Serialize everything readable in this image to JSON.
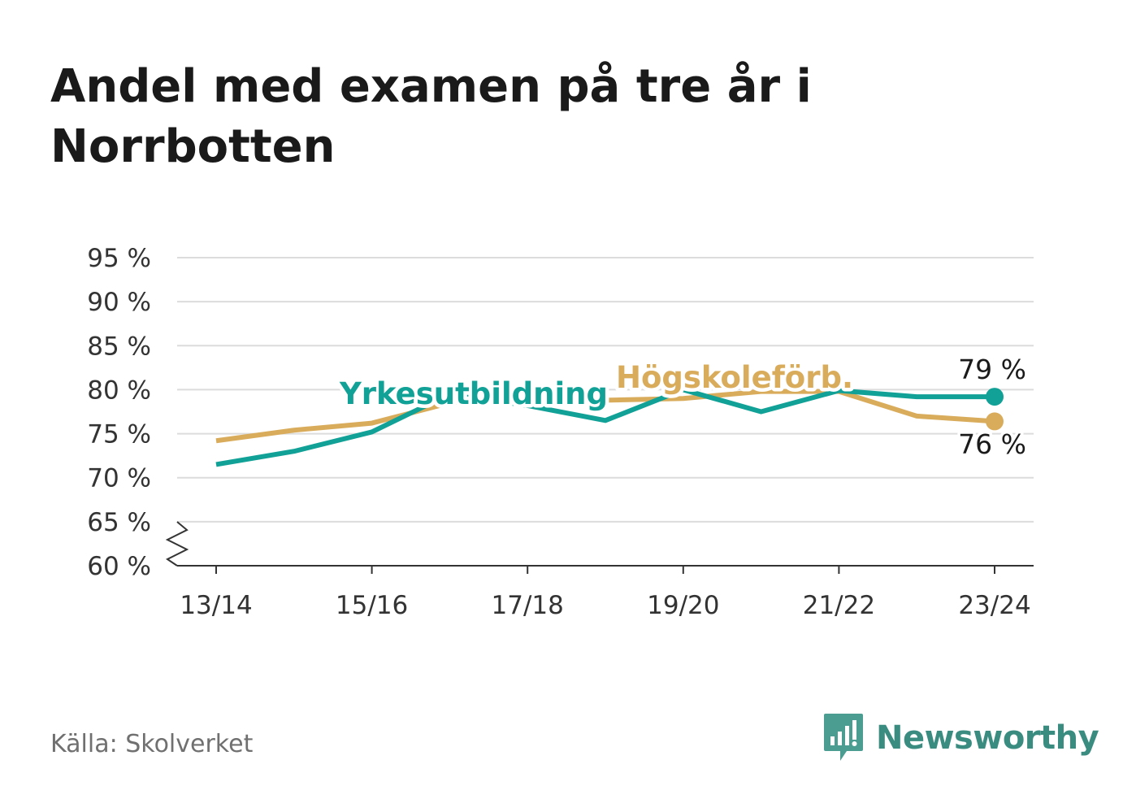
{
  "title": "Andel med examen på tre år i Norrbotten",
  "source": "Källa: Skolverket",
  "brand": {
    "name": "Newsworthy",
    "icon": "newsworthy-logo-icon",
    "color": "#3b8c80"
  },
  "chart_data": {
    "type": "line",
    "categories": [
      "13/14",
      "14/15",
      "15/16",
      "16/17",
      "17/18",
      "18/19",
      "19/20",
      "20/21",
      "21/22",
      "22/23",
      "23/24"
    ],
    "x_tick_labels": [
      "13/14",
      "15/16",
      "17/18",
      "19/20",
      "21/22",
      "23/24"
    ],
    "y_tick_labels": [
      "60 %",
      "65 %",
      "70 %",
      "75 %",
      "80 %",
      "85 %",
      "90 %",
      "95 %"
    ],
    "ylim": [
      60,
      95
    ],
    "y_axis_break": true,
    "grid": true,
    "series": [
      {
        "name": "Yrkesutbildning",
        "color": "#11a196",
        "values": [
          71.5,
          73.0,
          75.2,
          79.5,
          78.2,
          76.5,
          80.0,
          77.5,
          79.9,
          79.2,
          79.2
        ],
        "end_label": "79 %"
      },
      {
        "name": "Högskoleförb.",
        "color": "#d9ac5c",
        "values": [
          74.2,
          75.4,
          76.2,
          78.5,
          79.2,
          78.8,
          79.0,
          79.8,
          79.8,
          77.0,
          76.4
        ],
        "end_label": "76 %"
      }
    ]
  }
}
